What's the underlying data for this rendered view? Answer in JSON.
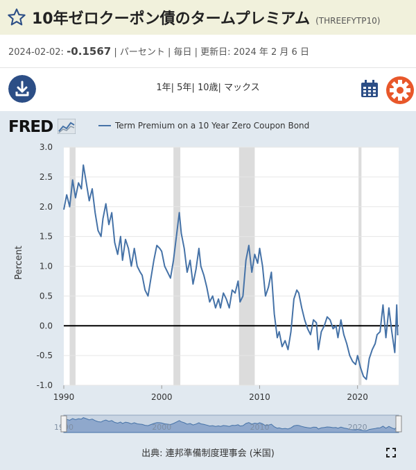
{
  "header": {
    "title": "10年ゼロクーポン債のタームプレミアム",
    "series_id": "(THREEFYTP10)"
  },
  "meta": {
    "date": "2024-02-02:",
    "value": "-0.1567",
    "unit": "| パーセント",
    "frequency": "| 毎日",
    "updated": "| 更新日: 2024 年 2 月 6 日"
  },
  "ranges": [
    "1年",
    "5年",
    "10歳",
    "マックス"
  ],
  "brand": "FRED",
  "footer": {
    "source": "出典: 連邦準備制度理事会 (米国)"
  },
  "icons": {
    "download": "download-icon",
    "calendar": "calendar-icon",
    "settings": "gear-icon",
    "fullscreen": "fullscreen-icon",
    "favorite": "star-icon"
  },
  "colors": {
    "series": "#4572a7",
    "plot_bg": "#ffffff",
    "chart_bg": "#e1e9f0",
    "recession": "#dcdcdc",
    "accent_red": "#e8572a",
    "nav_blue": "#2c4e86"
  },
  "chart_data": {
    "type": "line",
    "title": "",
    "xlabel": "",
    "ylabel": "Percent",
    "legend": "top-left",
    "series": [
      {
        "name": "Term Premium on a 10 Year Zero Coupon Bond",
        "x": [
          1990.0,
          1990.3,
          1990.6,
          1990.9,
          1991.2,
          1991.5,
          1991.8,
          1992.0,
          1992.3,
          1992.6,
          1992.9,
          1993.2,
          1993.5,
          1993.8,
          1994.0,
          1994.3,
          1994.6,
          1994.9,
          1995.2,
          1995.5,
          1995.8,
          1996.0,
          1996.3,
          1996.6,
          1996.9,
          1997.2,
          1997.5,
          1997.8,
          1998.0,
          1998.3,
          1998.6,
          1998.9,
          1999.2,
          1999.5,
          1999.8,
          2000.0,
          2000.3,
          2000.6,
          2000.9,
          2001.2,
          2001.5,
          2001.8,
          2002.0,
          2002.3,
          2002.6,
          2002.9,
          2003.2,
          2003.5,
          2003.8,
          2004.0,
          2004.3,
          2004.6,
          2004.9,
          2005.2,
          2005.5,
          2005.8,
          2006.0,
          2006.3,
          2006.6,
          2006.9,
          2007.2,
          2007.5,
          2007.8,
          2008.0,
          2008.3,
          2008.6,
          2008.9,
          2009.2,
          2009.5,
          2009.8,
          2010.0,
          2010.3,
          2010.6,
          2010.9,
          2011.2,
          2011.5,
          2011.8,
          2012.0,
          2012.3,
          2012.6,
          2012.9,
          2013.2,
          2013.5,
          2013.8,
          2014.0,
          2014.3,
          2014.6,
          2014.9,
          2015.2,
          2015.5,
          2015.8,
          2016.0,
          2016.3,
          2016.6,
          2016.9,
          2017.2,
          2017.5,
          2017.8,
          2018.0,
          2018.3,
          2018.6,
          2018.9,
          2019.2,
          2019.5,
          2019.8,
          2020.0,
          2020.3,
          2020.6,
          2020.9,
          2021.2,
          2021.5,
          2021.8,
          2022.0,
          2022.3,
          2022.6,
          2022.9,
          2023.2,
          2023.5,
          2023.8,
          2024.0,
          2024.1
        ],
        "values": [
          1.95,
          2.2,
          2.0,
          2.45,
          2.15,
          2.4,
          2.3,
          2.7,
          2.4,
          2.1,
          2.3,
          1.9,
          1.6,
          1.5,
          1.8,
          2.05,
          1.7,
          1.9,
          1.4,
          1.2,
          1.5,
          1.1,
          1.45,
          1.3,
          1.0,
          1.3,
          1.0,
          0.9,
          0.85,
          0.6,
          0.5,
          0.8,
          1.1,
          1.35,
          1.3,
          1.25,
          1.0,
          0.9,
          0.8,
          1.1,
          1.5,
          1.9,
          1.55,
          1.3,
          0.9,
          1.1,
          0.7,
          0.95,
          1.3,
          1.0,
          0.85,
          0.65,
          0.4,
          0.5,
          0.3,
          0.45,
          0.3,
          0.55,
          0.45,
          0.3,
          0.6,
          0.55,
          0.75,
          0.4,
          0.5,
          1.1,
          1.35,
          0.9,
          1.2,
          1.05,
          1.3,
          1.0,
          0.5,
          0.65,
          0.9,
          0.2,
          -0.2,
          -0.1,
          -0.35,
          -0.25,
          -0.4,
          -0.1,
          0.45,
          0.6,
          0.55,
          0.3,
          0.1,
          -0.05,
          -0.15,
          0.1,
          0.05,
          -0.4,
          -0.1,
          0.0,
          0.15,
          0.1,
          -0.05,
          0.0,
          -0.2,
          0.1,
          -0.15,
          -0.3,
          -0.5,
          -0.6,
          -0.65,
          -0.5,
          -0.7,
          -0.85,
          -0.9,
          -0.55,
          -0.4,
          -0.3,
          -0.15,
          -0.1,
          0.35,
          -0.2,
          0.3,
          -0.1,
          -0.45,
          0.35,
          -0.16
        ],
        "color": "#4572a7"
      }
    ],
    "xlim": [
      1990,
      2024.2
    ],
    "ylim": [
      -1.0,
      3.0
    ],
    "x_ticks": [
      "1990",
      "2000",
      "2010",
      "2020"
    ],
    "y_ticks": [
      "3.0",
      "2.5",
      "2.0",
      "1.5",
      "1.0",
      "0.5",
      "0.0",
      "-0.5",
      "-1.0"
    ],
    "zero_line": 0.0,
    "recessions": [
      [
        1990.6,
        1991.2
      ],
      [
        2001.2,
        2001.9
      ],
      [
        2007.9,
        2009.5
      ],
      [
        2020.1,
        2020.4
      ]
    ],
    "grid": true
  }
}
